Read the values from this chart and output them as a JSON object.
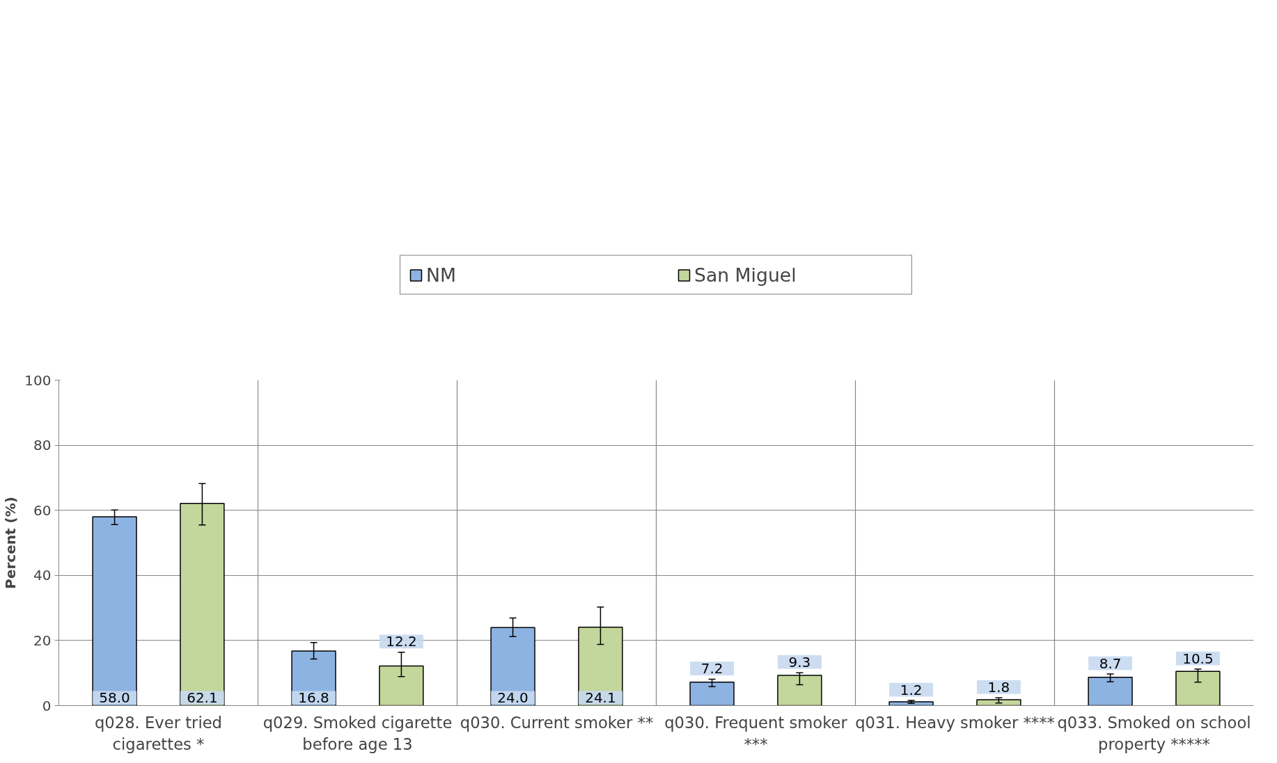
{
  "chart_data": {
    "type": "bar",
    "ylabel": "Percent (%)",
    "categories": [
      "q028. Ever tried cigarettes *",
      "q029. Smoked cigarette before age 13",
      "q030. Current smoker **",
      "q030. Frequent smoker ***",
      "q031. Heavy smoker ****",
      "q033. Smoked on school property *****"
    ],
    "series": [
      {
        "name": "NM",
        "color": "#8db3e2",
        "values": [
          58.0,
          16.8,
          24.0,
          7.2,
          1.2,
          8.7
        ],
        "value_labels": [
          "58.0",
          "16.8",
          "24.0",
          "7.2",
          "1.2",
          "8.7"
        ],
        "errors": [
          [
            55.6,
            60.1
          ],
          [
            14.3,
            19.4
          ],
          [
            21.2,
            26.9
          ],
          [
            5.8,
            8.1
          ],
          [
            0.7,
            1.6
          ],
          [
            7.3,
            9.7
          ]
        ]
      },
      {
        "name": "San Miguel",
        "color": "#c3d69b",
        "values": [
          62.1,
          12.2,
          24.1,
          9.3,
          1.8,
          10.5
        ],
        "value_labels": [
          "62.1",
          "12.2",
          "24.1",
          "9.3",
          "1.8",
          "10.5"
        ],
        "errors": [
          [
            55.5,
            68.2
          ],
          [
            8.9,
            16.4
          ],
          [
            18.8,
            30.3
          ],
          [
            6.4,
            10.1
          ],
          [
            0.8,
            2.4
          ],
          [
            7.2,
            11.2
          ]
        ]
      }
    ],
    "ylim": [
      0,
      100
    ],
    "yticks": [
      0,
      20,
      40,
      60,
      80,
      100
    ],
    "grid": true,
    "legend": "top"
  }
}
